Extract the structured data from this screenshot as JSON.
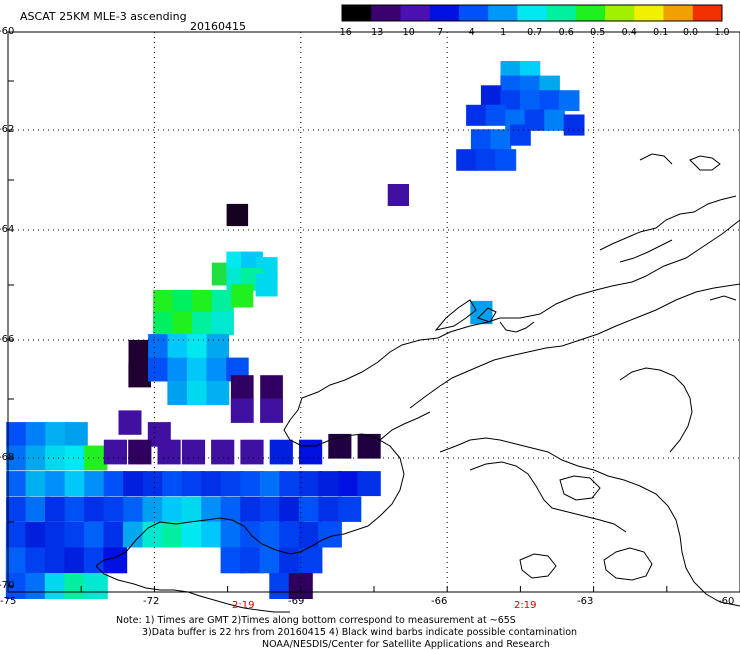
{
  "header": {
    "title": "ASCAT 25KM MLE-3 ascending",
    "date": "20160415"
  },
  "colorbar": {
    "labels": [
      "-16",
      "-13",
      "-10",
      "-7",
      "-4",
      "-1",
      "-0.7",
      "-0.6",
      "-0.5",
      "-0.4",
      "-0.1",
      "0.0",
      "1.0"
    ],
    "colors": [
      "#000000",
      "#3a0070",
      "#4a10b0",
      "#0010e0",
      "#0050f8",
      "#0098f8",
      "#00e8f0",
      "#00f0a0",
      "#20f020",
      "#a0f000",
      "#f0f000",
      "#f0a000",
      "#f03000"
    ]
  },
  "axes": {
    "lat_labels": [
      "-60",
      "-62",
      "-64",
      "-66",
      "-68",
      "-70"
    ],
    "lon_labels": [
      "-75",
      "-72",
      "-69",
      "-66",
      "-63",
      "-60"
    ]
  },
  "time_marks": [
    "2:19",
    "2:19"
  ],
  "notes": {
    "line1": "Note: 1) Times are GMT 2)Times along bottom correspond to measurement at ~65S",
    "line2": "3)Data buffer is 22 hrs from 20160415 4) Black wind barbs indicate possible contamination",
    "line3": "NOAA/NESDIS/Center for Satellite Applications and Research"
  },
  "map_data": {
    "cells": [
      {
        "lon": -64.7,
        "lat": -60.8,
        "c": "#00a8f0"
      },
      {
        "lon": -64.3,
        "lat": -60.8,
        "c": "#00d0f8"
      },
      {
        "lon": -64.7,
        "lat": -61.1,
        "c": "#0060f8"
      },
      {
        "lon": -64.3,
        "lat": -61.1,
        "c": "#0070f8"
      },
      {
        "lon": -63.9,
        "lat": -61.1,
        "c": "#00a8f0"
      },
      {
        "lon": -65.1,
        "lat": -61.3,
        "c": "#0020e0"
      },
      {
        "lon": -64.7,
        "lat": -61.4,
        "c": "#0040f0"
      },
      {
        "lon": -64.3,
        "lat": -61.4,
        "c": "#0060f8"
      },
      {
        "lon": -63.9,
        "lat": -61.4,
        "c": "#0050f8"
      },
      {
        "lon": -63.5,
        "lat": -61.4,
        "c": "#0070f8"
      },
      {
        "lon": -65.4,
        "lat": -61.7,
        "c": "#0030e8"
      },
      {
        "lon": -65.0,
        "lat": -61.7,
        "c": "#0050f8"
      },
      {
        "lon": -64.6,
        "lat": -61.8,
        "c": "#0070f8"
      },
      {
        "lon": -64.2,
        "lat": -61.8,
        "c": "#0040f0"
      },
      {
        "lon": -63.8,
        "lat": -61.8,
        "c": "#0080f8"
      },
      {
        "lon": -63.4,
        "lat": -61.9,
        "c": "#0030e8"
      },
      {
        "lon": -65.3,
        "lat": -62.2,
        "c": "#0050f8"
      },
      {
        "lon": -64.9,
        "lat": -62.2,
        "c": "#0070f8"
      },
      {
        "lon": -64.5,
        "lat": -62.1,
        "c": "#0040f0"
      },
      {
        "lon": -65.6,
        "lat": -62.6,
        "c": "#0030e8"
      },
      {
        "lon": -65.2,
        "lat": -62.6,
        "c": "#0040f0"
      },
      {
        "lon": -64.8,
        "lat": -62.6,
        "c": "#0050f8"
      },
      {
        "lon": -67.0,
        "lat": -63.3,
        "c": "#4010a0"
      },
      {
        "lon": -70.3,
        "lat": -63.7,
        "c": "#150020"
      },
      {
        "lon": -65.3,
        "lat": -65.5,
        "c": "#00a0f0"
      },
      {
        "lon": -70.6,
        "lat": -64.8,
        "c": "#20e040"
      },
      {
        "lon": -70.3,
        "lat": -64.6,
        "c": "#00e8f0"
      },
      {
        "lon": -70.0,
        "lat": -64.6,
        "c": "#00c8f8"
      },
      {
        "lon": -69.7,
        "lat": -64.7,
        "c": "#00d8f0"
      },
      {
        "lon": -70.3,
        "lat": -64.9,
        "c": "#00e8d0"
      },
      {
        "lon": -70.0,
        "lat": -64.9,
        "c": "#00f0a0"
      },
      {
        "lon": -69.7,
        "lat": -65.0,
        "c": "#00d8f0"
      },
      {
        "lon": -71.8,
        "lat": -65.3,
        "c": "#20f020"
      },
      {
        "lon": -71.4,
        "lat": -65.3,
        "c": "#00f060"
      },
      {
        "lon": -71.0,
        "lat": -65.3,
        "c": "#20f020"
      },
      {
        "lon": -70.6,
        "lat": -65.3,
        "c": "#00f0a0"
      },
      {
        "lon": -70.2,
        "lat": -65.2,
        "c": "#20f020"
      },
      {
        "lon": -71.8,
        "lat": -65.7,
        "c": "#00f060"
      },
      {
        "lon": -71.4,
        "lat": -65.7,
        "c": "#20f020"
      },
      {
        "lon": -71.0,
        "lat": -65.7,
        "c": "#00f0a0"
      },
      {
        "lon": -70.6,
        "lat": -65.7,
        "c": "#00e8d0"
      },
      {
        "lon": -72.3,
        "lat": -66.2,
        "c": "#200030"
      },
      {
        "lon": -71.9,
        "lat": -66.1,
        "c": "#0070f8"
      },
      {
        "lon": -71.5,
        "lat": -66.1,
        "c": "#00c8f8"
      },
      {
        "lon": -71.1,
        "lat": -66.1,
        "c": "#00e8f0"
      },
      {
        "lon": -70.7,
        "lat": -66.1,
        "c": "#00a8f0"
      },
      {
        "lon": -72.3,
        "lat": -66.6,
        "c": "#200030"
      },
      {
        "lon": -71.9,
        "lat": -66.5,
        "c": "#0050f8"
      },
      {
        "lon": -71.5,
        "lat": -66.5,
        "c": "#0090f8"
      },
      {
        "lon": -71.1,
        "lat": -66.5,
        "c": "#00c8f8"
      },
      {
        "lon": -70.7,
        "lat": -66.5,
        "c": "#0090f8"
      },
      {
        "lon": -70.3,
        "lat": -66.5,
        "c": "#0050f8"
      },
      {
        "lon": -71.5,
        "lat": -66.9,
        "c": "#00a0f0"
      },
      {
        "lon": -71.1,
        "lat": -66.9,
        "c": "#00d8f0"
      },
      {
        "lon": -70.7,
        "lat": -66.9,
        "c": "#00b0f0"
      },
      {
        "lon": -70.2,
        "lat": -66.8,
        "c": "#300060"
      },
      {
        "lon": -69.6,
        "lat": -66.8,
        "c": "#300060"
      },
      {
        "lon": -70.2,
        "lat": -67.2,
        "c": "#4010a0"
      },
      {
        "lon": -69.6,
        "lat": -67.2,
        "c": "#4010a0"
      },
      {
        "lon": -74.8,
        "lat": -67.6,
        "c": "#0050f8"
      },
      {
        "lon": -74.4,
        "lat": -67.6,
        "c": "#0080f8"
      },
      {
        "lon": -74.0,
        "lat": -67.6,
        "c": "#00b0f0"
      },
      {
        "lon": -73.6,
        "lat": -67.6,
        "c": "#00a0f0"
      },
      {
        "lon": -72.5,
        "lat": -67.4,
        "c": "#4010a0"
      },
      {
        "lon": -71.9,
        "lat": -67.6,
        "c": "#4010a0"
      },
      {
        "lon": -74.8,
        "lat": -68.0,
        "c": "#0070f8"
      },
      {
        "lon": -74.4,
        "lat": -68.0,
        "c": "#00a8f0"
      },
      {
        "lon": -74.0,
        "lat": -68.0,
        "c": "#00d8f0"
      },
      {
        "lon": -73.6,
        "lat": -68.0,
        "c": "#00e8f0"
      },
      {
        "lon": -73.2,
        "lat": -68.0,
        "c": "#20f020"
      },
      {
        "lon": -72.8,
        "lat": -67.9,
        "c": "#4010a0"
      },
      {
        "lon": -72.3,
        "lat": -67.9,
        "c": "#300060"
      },
      {
        "lon": -71.7,
        "lat": -67.9,
        "c": "#4010a0"
      },
      {
        "lon": -71.2,
        "lat": -67.9,
        "c": "#4010a0"
      },
      {
        "lon": -70.6,
        "lat": -67.9,
        "c": "#4010a0"
      },
      {
        "lon": -70.0,
        "lat": -67.9,
        "c": "#4010a0"
      },
      {
        "lon": -69.4,
        "lat": -67.9,
        "c": "#0020e0"
      },
      {
        "lon": -68.8,
        "lat": -67.9,
        "c": "#0010e0"
      },
      {
        "lon": -68.2,
        "lat": -67.8,
        "c": "#200040"
      },
      {
        "lon": -67.6,
        "lat": -67.8,
        "c": "#200040"
      },
      {
        "lon": -74.8,
        "lat": -68.4,
        "c": "#0060f8"
      },
      {
        "lon": -74.4,
        "lat": -68.4,
        "c": "#00b0f0"
      },
      {
        "lon": -74.0,
        "lat": -68.4,
        "c": "#0090f8"
      },
      {
        "lon": -73.6,
        "lat": -68.4,
        "c": "#00c8f8"
      },
      {
        "lon": -73.2,
        "lat": -68.4,
        "c": "#0090f8"
      },
      {
        "lon": -72.8,
        "lat": -68.4,
        "c": "#0050f8"
      },
      {
        "lon": -72.4,
        "lat": -68.4,
        "c": "#0020e0"
      },
      {
        "lon": -72.0,
        "lat": -68.4,
        "c": "#0030e8"
      },
      {
        "lon": -71.6,
        "lat": -68.4,
        "c": "#0050f8"
      },
      {
        "lon": -71.2,
        "lat": -68.4,
        "c": "#0040f0"
      },
      {
        "lon": -70.8,
        "lat": -68.4,
        "c": "#0030e8"
      },
      {
        "lon": -70.4,
        "lat": -68.4,
        "c": "#0040f0"
      },
      {
        "lon": -70.0,
        "lat": -68.4,
        "c": "#0050f8"
      },
      {
        "lon": -69.6,
        "lat": -68.4,
        "c": "#0070f8"
      },
      {
        "lon": -69.2,
        "lat": -68.4,
        "c": "#0040f0"
      },
      {
        "lon": -68.8,
        "lat": -68.4,
        "c": "#0030e8"
      },
      {
        "lon": -68.4,
        "lat": -68.4,
        "c": "#0020e0"
      },
      {
        "lon": -68.0,
        "lat": -68.4,
        "c": "#0010e0"
      },
      {
        "lon": -67.6,
        "lat": -68.4,
        "c": "#0030e8"
      },
      {
        "lon": -74.8,
        "lat": -68.8,
        "c": "#0040f0"
      },
      {
        "lon": -74.4,
        "lat": -68.8,
        "c": "#0070f8"
      },
      {
        "lon": -74.0,
        "lat": -68.8,
        "c": "#0030e8"
      },
      {
        "lon": -73.6,
        "lat": -68.8,
        "c": "#0050f8"
      },
      {
        "lon": -73.2,
        "lat": -68.8,
        "c": "#0030e8"
      },
      {
        "lon": -72.8,
        "lat": -68.8,
        "c": "#0040f0"
      },
      {
        "lon": -72.4,
        "lat": -68.8,
        "c": "#0060f8"
      },
      {
        "lon": -72.0,
        "lat": -68.8,
        "c": "#00a0f0"
      },
      {
        "lon": -71.6,
        "lat": -68.8,
        "c": "#00c8f8"
      },
      {
        "lon": -71.2,
        "lat": -68.8,
        "c": "#00d8f0"
      },
      {
        "lon": -70.8,
        "lat": -68.8,
        "c": "#0090f8"
      },
      {
        "lon": -70.4,
        "lat": -68.8,
        "c": "#0060f8"
      },
      {
        "lon": -70.0,
        "lat": -68.8,
        "c": "#0030e8"
      },
      {
        "lon": -69.6,
        "lat": -68.8,
        "c": "#0040f0"
      },
      {
        "lon": -69.2,
        "lat": -68.8,
        "c": "#0020e0"
      },
      {
        "lon": -68.8,
        "lat": -68.8,
        "c": "#0050f8"
      },
      {
        "lon": -68.4,
        "lat": -68.8,
        "c": "#0030e8"
      },
      {
        "lon": -68.0,
        "lat": -68.8,
        "c": "#0040f0"
      },
      {
        "lon": -74.8,
        "lat": -69.2,
        "c": "#0040f0"
      },
      {
        "lon": -74.4,
        "lat": -69.2,
        "c": "#0020e0"
      },
      {
        "lon": -74.0,
        "lat": -69.2,
        "c": "#0030e8"
      },
      {
        "lon": -73.6,
        "lat": -69.2,
        "c": "#0040f0"
      },
      {
        "lon": -73.2,
        "lat": -69.2,
        "c": "#0060f8"
      },
      {
        "lon": -72.8,
        "lat": -69.2,
        "c": "#0030e8"
      },
      {
        "lon": -72.4,
        "lat": -69.2,
        "c": "#00a8f0"
      },
      {
        "lon": -72.0,
        "lat": -69.2,
        "c": "#00e8d0"
      },
      {
        "lon": -71.6,
        "lat": -69.2,
        "c": "#00f0a0"
      },
      {
        "lon": -71.2,
        "lat": -69.2,
        "c": "#00e8f0"
      },
      {
        "lon": -70.8,
        "lat": -69.2,
        "c": "#00c8f8"
      },
      {
        "lon": -70.4,
        "lat": -69.2,
        "c": "#0070f8"
      },
      {
        "lon": -70.0,
        "lat": -69.2,
        "c": "#0050f8"
      },
      {
        "lon": -69.6,
        "lat": -69.2,
        "c": "#0060f8"
      },
      {
        "lon": -69.2,
        "lat": -69.2,
        "c": "#0040f0"
      },
      {
        "lon": -68.8,
        "lat": -69.2,
        "c": "#0030e8"
      },
      {
        "lon": -68.4,
        "lat": -69.2,
        "c": "#0050f8"
      },
      {
        "lon": -74.8,
        "lat": -69.6,
        "c": "#0060f8"
      },
      {
        "lon": -74.4,
        "lat": -69.6,
        "c": "#0040f0"
      },
      {
        "lon": -74.0,
        "lat": -69.6,
        "c": "#0030e8"
      },
      {
        "lon": -73.6,
        "lat": -69.6,
        "c": "#0020e0"
      },
      {
        "lon": -73.2,
        "lat": -69.6,
        "c": "#0040f0"
      },
      {
        "lon": -72.8,
        "lat": -69.6,
        "c": "#0010e0"
      },
      {
        "lon": -70.4,
        "lat": -69.6,
        "c": "#0050f8"
      },
      {
        "lon": -70.0,
        "lat": -69.6,
        "c": "#0040f0"
      },
      {
        "lon": -69.6,
        "lat": -69.6,
        "c": "#0060f8"
      },
      {
        "lon": -69.2,
        "lat": -69.6,
        "c": "#0030e8"
      },
      {
        "lon": -68.8,
        "lat": -69.6,
        "c": "#0040f0"
      },
      {
        "lon": -74.8,
        "lat": -70.0,
        "c": "#0050f8"
      },
      {
        "lon": -74.4,
        "lat": -70.0,
        "c": "#0070f8"
      },
      {
        "lon": -74.0,
        "lat": -70.0,
        "c": "#00d8f0"
      },
      {
        "lon": -73.6,
        "lat": -70.0,
        "c": "#00f0a0"
      },
      {
        "lon": -73.2,
        "lat": -70.0,
        "c": "#00e8d0"
      },
      {
        "lon": -69.4,
        "lat": -70.0,
        "c": "#0040f0"
      },
      {
        "lon": -69.0,
        "lat": -70.0,
        "c": "#300060"
      }
    ]
  }
}
